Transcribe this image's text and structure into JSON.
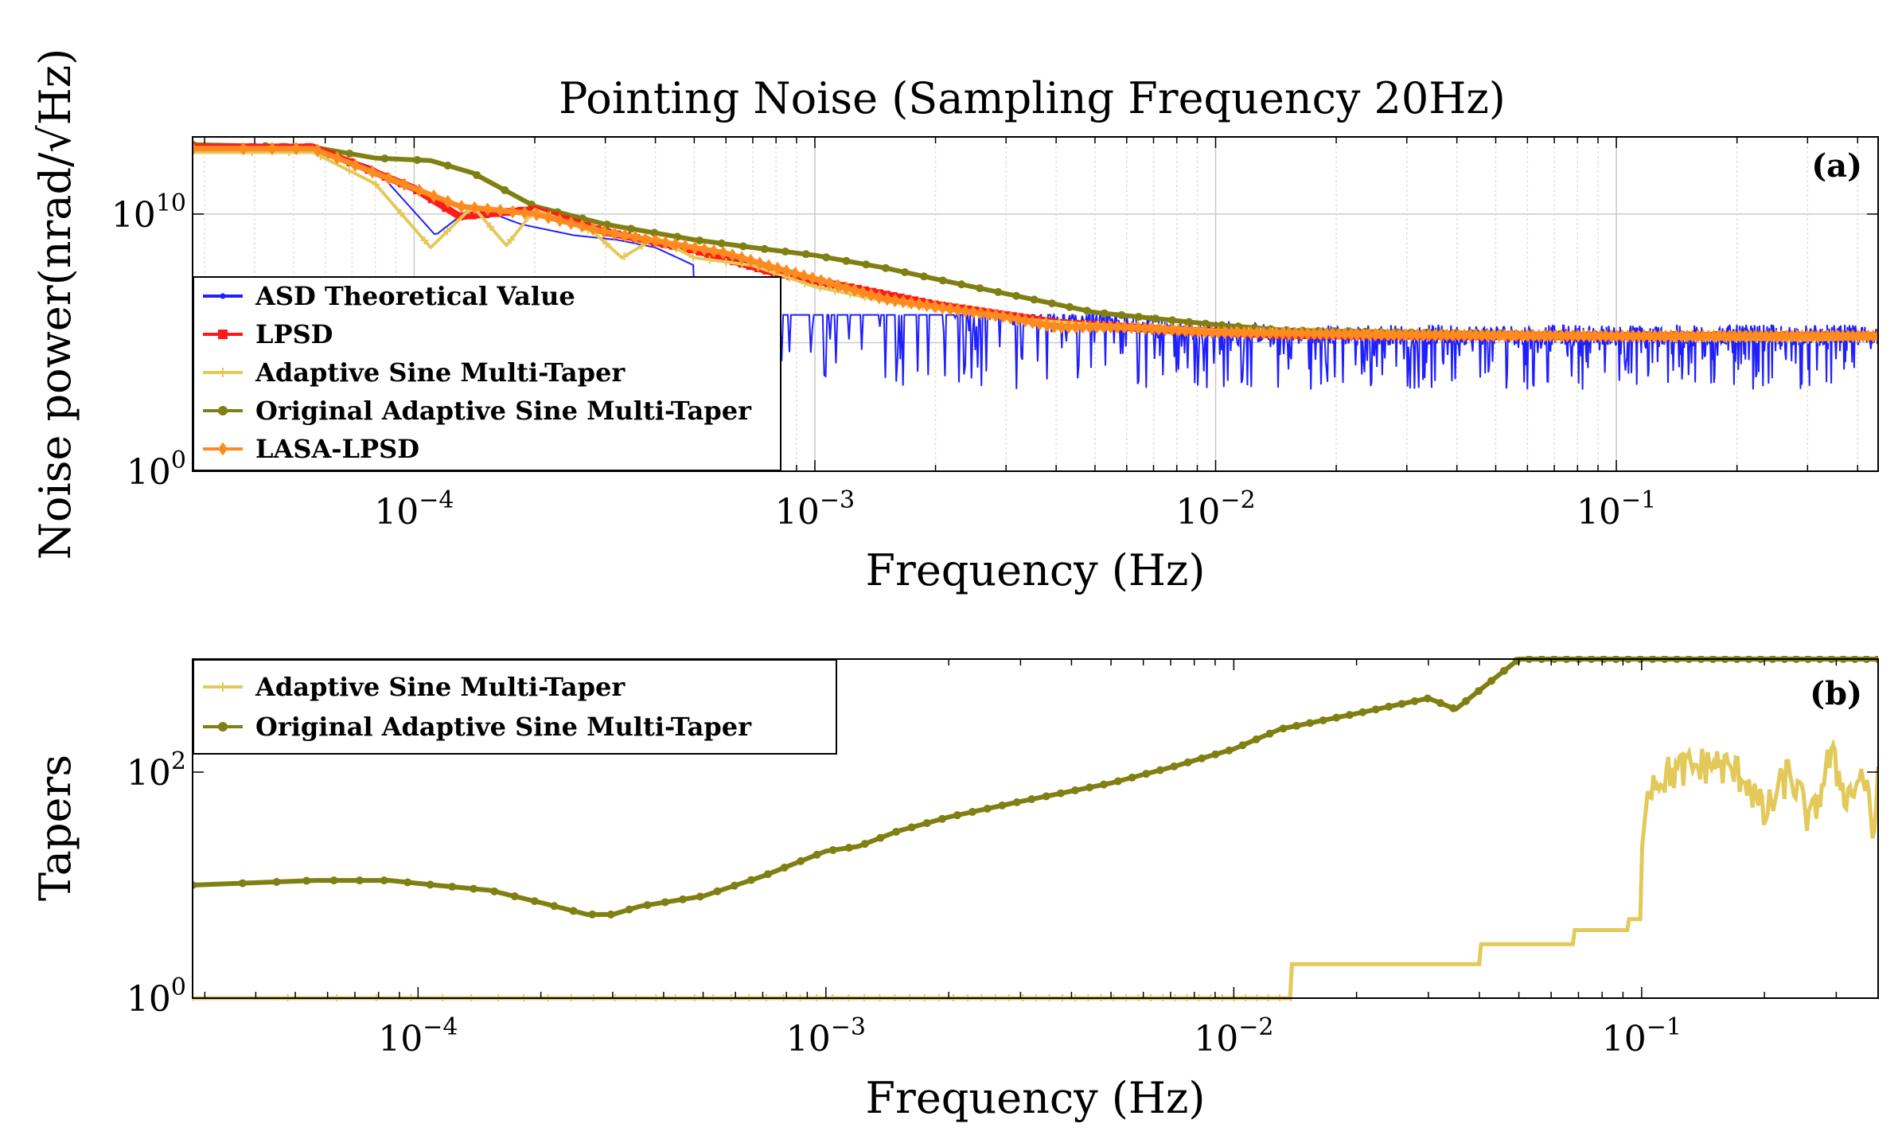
{
  "colors": {
    "asd": "#1f1fff",
    "lpsd": "#ff1a1a",
    "adaptive": "#e3c95a",
    "original": "#808012",
    "lasa": "#ff8a1f"
  },
  "chart_data": [
    {
      "type": "line",
      "panel_label": "(a)",
      "title": "Pointing Noise (Sampling Frequency 20Hz)",
      "xlabel": "Frequency (Hz)",
      "ylabel": "Noise power(nrad/√Hz)",
      "xscale": "log",
      "yscale": "log",
      "xlim": [
        2.8e-05,
        0.45
      ],
      "ylim": [
        1,
        10000000000000.0
      ],
      "xticks": [
        {
          "value": 0.0001,
          "base": "10",
          "exp": "−4"
        },
        {
          "value": 0.001,
          "base": "10",
          "exp": "−3"
        },
        {
          "value": 0.01,
          "base": "10",
          "exp": "−2"
        },
        {
          "value": 0.1,
          "base": "10",
          "exp": "−1"
        }
      ],
      "yticks": [
        {
          "value": 1,
          "base": "10",
          "exp": "0"
        },
        {
          "value": 10000000000.0,
          "base": "10",
          "exp": "10"
        }
      ],
      "grid": true,
      "legend": {
        "placement": "middle-left"
      },
      "series": [
        {
          "name": "ASD Theoretical Value",
          "color_key": "asd",
          "marker": "dot",
          "points": [
            [
              2.8e-05,
              4000000000000.0
            ],
            [
              5.6e-05,
              4000000000000.0
            ],
            [
              8e-05,
              600000000000.0
            ],
            [
              0.000113,
              1500000000.0
            ],
            [
              0.00014,
              20000000000.0
            ],
            [
              0.000185,
              4000000000.0
            ],
            [
              0.00025,
              1500000000.0
            ],
            [
              0.00032,
              1000000000.0
            ],
            [
              0.0004,
              500000000.0
            ],
            [
              0.0005,
              100000000.0
            ],
            [
              0.0006,
              200000000.0
            ],
            [
              0.0008,
              60000000.0
            ],
            [
              0.001,
              30000000.0
            ],
            [
              0.0013,
              10000000.0
            ],
            [
              0.002,
              4000000.0
            ],
            [
              0.003,
              1500000.0
            ],
            [
              0.005,
              800000.0
            ],
            [
              0.008,
              400000.0
            ],
            [
              0.015,
              200000.0
            ],
            [
              0.03,
              200000.0
            ],
            [
              0.1,
              200000.0
            ],
            [
              0.45,
              200000.0
            ]
          ],
          "noise_band_low": 1500.0,
          "noise_band_high": 1200000.0
        },
        {
          "name": "LPSD",
          "color_key": "lpsd",
          "marker": "square",
          "points": [
            [
              2.8e-05,
              4000000000000.0
            ],
            [
              5.6e-05,
              4000000000000.0
            ],
            [
              0.0001,
              100000000000.0
            ],
            [
              0.00013,
              8000000000.0
            ],
            [
              0.0002,
              15000000000.0
            ],
            [
              0.0003,
              2000000000.0
            ],
            [
              0.0005,
              400000000.0
            ],
            [
              0.0008,
              50000000.0
            ],
            [
              0.0012,
              15000000.0
            ],
            [
              0.002,
              3000000.0
            ],
            [
              0.004,
              600000.0
            ],
            [
              0.008,
              300000.0
            ],
            [
              0.015,
              200000.0
            ],
            [
              0.05,
              180000.0
            ],
            [
              0.15,
              180000.0
            ],
            [
              0.45,
              180000.0
            ]
          ]
        },
        {
          "name": "Adaptive Sine Multi-Taper",
          "color_key": "adaptive",
          "marker": "plus",
          "points": [
            [
              2.8e-05,
              2500000000000.0
            ],
            [
              5.6e-05,
              2500000000000.0
            ],
            [
              8e-05,
              150000000000.0
            ],
            [
              0.00011,
              500000000.0
            ],
            [
              0.00014,
              20000000000.0
            ],
            [
              0.00017,
              600000000.0
            ],
            [
              0.0002,
              15000000000.0
            ],
            [
              0.00028,
              2000000000.0
            ],
            [
              0.00033,
              200000000.0
            ],
            [
              0.0004,
              1200000000.0
            ],
            [
              0.0005,
              200000000.0
            ],
            [
              0.0007,
              100000000.0
            ],
            [
              0.001,
              15000000.0
            ],
            [
              0.0015,
              4000000.0
            ],
            [
              0.003,
              900000.0
            ],
            [
              0.005,
              500000.0
            ],
            [
              0.01,
              300000.0
            ],
            [
              0.03,
              200000.0
            ],
            [
              0.1,
              160000.0
            ],
            [
              0.3,
              130000.0
            ],
            [
              0.45,
              150000.0
            ]
          ]
        },
        {
          "name": "Original Adaptive Sine Multi-Taper",
          "color_key": "original",
          "marker": "circle",
          "points": [
            [
              2.8e-05,
              5000000000000.0
            ],
            [
              5.6e-05,
              4000000000000.0
            ],
            [
              8e-05,
              1500000000000.0
            ],
            [
              0.00011,
              1200000000000.0
            ],
            [
              0.00014,
              400000000000.0
            ],
            [
              0.0002,
              20000000000.0
            ],
            [
              0.0003,
              4000000000.0
            ],
            [
              0.0005,
              1000000000.0
            ],
            [
              0.0007,
              500000000.0
            ],
            [
              0.001,
              250000000.0
            ],
            [
              0.0015,
              80000000.0
            ],
            [
              0.002,
              30000000.0
            ],
            [
              0.003,
              8000000.0
            ],
            [
              0.005,
              1500000.0
            ],
            [
              0.01,
              500000.0
            ],
            [
              0.015,
              300000.0
            ],
            [
              0.03,
              250000.0
            ],
            [
              0.1,
              200000.0
            ],
            [
              0.45,
              200000.0
            ]
          ]
        },
        {
          "name": "LASA-LPSD",
          "color_key": "lasa",
          "marker": "diamond",
          "points": [
            [
              2.8e-05,
              3500000000000.0
            ],
            [
              5.6e-05,
              3500000000000.0
            ],
            [
              0.0001,
              100000000000.0
            ],
            [
              0.00013,
              20000000000.0
            ],
            [
              0.0002,
              10000000000.0
            ],
            [
              0.0003,
              2000000000.0
            ],
            [
              0.0004,
              900000000.0
            ],
            [
              0.0006,
              300000000.0
            ],
            [
              0.0008,
              80000000.0
            ],
            [
              0.001,
              30000000.0
            ],
            [
              0.0015,
              5000000.0
            ],
            [
              0.002,
              2500000.0
            ],
            [
              0.003,
              1000000.0
            ],
            [
              0.004,
              400000.0
            ],
            [
              0.006,
              400000.0
            ],
            [
              0.01,
              250000.0
            ],
            [
              0.03,
              200000.0
            ],
            [
              0.1,
              180000.0
            ],
            [
              0.45,
              180000.0
            ]
          ]
        }
      ]
    },
    {
      "type": "line",
      "panel_label": "(b)",
      "xlabel": "Frequency (Hz)",
      "ylabel": "Tapers",
      "xscale": "log",
      "yscale": "log",
      "xlim": [
        2.8e-05,
        0.38
      ],
      "ylim": [
        1,
        1000
      ],
      "xticks": [
        {
          "value": 0.0001,
          "base": "10",
          "exp": "−4"
        },
        {
          "value": 0.001,
          "base": "10",
          "exp": "−3"
        },
        {
          "value": 0.01,
          "base": "10",
          "exp": "−2"
        },
        {
          "value": 0.1,
          "base": "10",
          "exp": "−1"
        }
      ],
      "yticks": [
        {
          "value": 1,
          "base": "10",
          "exp": "0"
        },
        {
          "value": 100,
          "base": "10",
          "exp": "2"
        }
      ],
      "grid": false,
      "legend": {
        "placement": "top-left"
      },
      "series": [
        {
          "name": "Adaptive Sine Multi-Taper",
          "color_key": "adaptive",
          "marker": "plus",
          "points": [
            [
              2.8e-05,
              1
            ],
            [
              0.0138,
              1
            ],
            [
              0.0138,
              2
            ],
            [
              0.04,
              2
            ],
            [
              0.04,
              3
            ],
            [
              0.068,
              3
            ],
            [
              0.068,
              4
            ],
            [
              0.093,
              4
            ],
            [
              0.093,
              5
            ],
            [
              0.1,
              5
            ],
            [
              0.1,
              20
            ],
            [
              0.104,
              80
            ],
            [
              0.12,
              100
            ],
            [
              0.15,
              120
            ],
            [
              0.18,
              90
            ],
            [
              0.2,
              40
            ],
            [
              0.23,
              100
            ],
            [
              0.26,
              35
            ],
            [
              0.29,
              140
            ],
            [
              0.32,
              60
            ],
            [
              0.35,
              100
            ],
            [
              0.37,
              25
            ],
            [
              0.38,
              100
            ]
          ]
        },
        {
          "name": "Original Adaptive Sine Multi-Taper",
          "color_key": "original",
          "marker": "circle",
          "points": [
            [
              2.8e-05,
              10
            ],
            [
              5.6e-05,
              11
            ],
            [
              8.5e-05,
              11
            ],
            [
              0.00011,
              10
            ],
            [
              0.00015,
              9
            ],
            [
              0.0002,
              7
            ],
            [
              0.00026,
              5.5
            ],
            [
              0.0003,
              5.5
            ],
            [
              0.00035,
              6.5
            ],
            [
              0.0005,
              8
            ],
            [
              0.0007,
              12
            ],
            [
              0.001,
              20
            ],
            [
              0.0012,
              22
            ],
            [
              0.0015,
              30
            ],
            [
              0.002,
              40
            ],
            [
              0.003,
              55
            ],
            [
              0.005,
              80
            ],
            [
              0.007,
              110
            ],
            [
              0.01,
              160
            ],
            [
              0.013,
              240
            ],
            [
              0.02,
              330
            ],
            [
              0.03,
              450
            ],
            [
              0.035,
              360
            ],
            [
              0.05,
              1000
            ],
            [
              0.38,
              1000
            ]
          ]
        }
      ]
    }
  ]
}
